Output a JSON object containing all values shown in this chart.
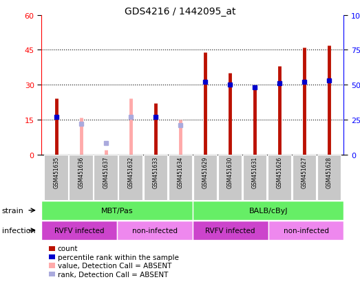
{
  "title": "GDS4216 / 1442095_at",
  "samples": [
    "GSM451635",
    "GSM451636",
    "GSM451637",
    "GSM451632",
    "GSM451633",
    "GSM451634",
    "GSM451629",
    "GSM451630",
    "GSM451631",
    "GSM451626",
    "GSM451627",
    "GSM451628"
  ],
  "count_values": [
    24,
    0,
    0,
    0,
    22,
    0,
    44,
    35,
    28,
    38,
    46,
    47
  ],
  "count_absent": [
    false,
    true,
    true,
    true,
    false,
    true,
    false,
    false,
    false,
    false,
    false,
    false
  ],
  "absent_count_values": [
    0,
    16,
    2,
    24,
    0,
    15,
    0,
    0,
    0,
    0,
    0,
    0
  ],
  "percentile_values": [
    27,
    0,
    0,
    0,
    27,
    0,
    52,
    50,
    48,
    51,
    52,
    53
  ],
  "percentile_absent": [
    false,
    true,
    true,
    true,
    false,
    true,
    false,
    false,
    false,
    false,
    false,
    false
  ],
  "absent_percentile_values": [
    0,
    22,
    8,
    27,
    0,
    21,
    0,
    0,
    0,
    0,
    0,
    0
  ],
  "strain_groups": [
    {
      "label": "MBT/Pas",
      "start": 0,
      "end": 6,
      "color": "#66EE66"
    },
    {
      "label": "BALB/cByJ",
      "start": 6,
      "end": 12,
      "color": "#66EE66"
    }
  ],
  "infection_groups": [
    {
      "label": "RVFV infected",
      "start": 0,
      "end": 3,
      "color": "#CC44CC"
    },
    {
      "label": "non-infected",
      "start": 3,
      "end": 6,
      "color": "#EE88EE"
    },
    {
      "label": "RVFV infected",
      "start": 6,
      "end": 9,
      "color": "#CC44CC"
    },
    {
      "label": "non-infected",
      "start": 9,
      "end": 12,
      "color": "#EE88EE"
    }
  ],
  "ylim_left": [
    0,
    60
  ],
  "ylim_right": [
    0,
    100
  ],
  "yticks_left": [
    0,
    15,
    30,
    45,
    60
  ],
  "yticks_right": [
    0,
    25,
    50,
    75,
    100
  ],
  "bar_color_red": "#BB1100",
  "bar_color_pink": "#FFAAAA",
  "dot_color_blue": "#0000CC",
  "dot_color_lightblue": "#AAAADD",
  "grid_color": "#000000",
  "tick_label_bg": "#C8C8C8",
  "bar_linewidth": 3.5
}
